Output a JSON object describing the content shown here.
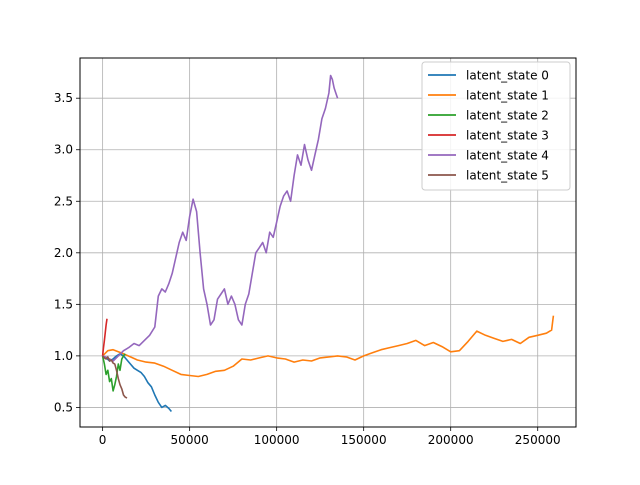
{
  "chart_data": {
    "type": "line",
    "title": "",
    "xlabel": "",
    "ylabel": "",
    "xlim": [
      -13000,
      272000
    ],
    "ylim": [
      0.31,
      3.89
    ],
    "grid": true,
    "legend_position": "top-right",
    "x_ticks": [
      0,
      50000,
      100000,
      150000,
      200000,
      250000
    ],
    "x_tick_labels": [
      "0",
      "50000",
      "100000",
      "150000",
      "200000",
      "250000"
    ],
    "y_ticks": [
      0.5,
      1.0,
      1.5,
      2.0,
      2.5,
      3.0,
      3.5
    ],
    "y_tick_labels": [
      "0.5",
      "1.0",
      "1.5",
      "2.0",
      "2.5",
      "3.0",
      "3.5"
    ],
    "series": [
      {
        "name": "latent_state 0",
        "color": "#1f77b4",
        "x": [
          0,
          2000,
          4000,
          6000,
          8000,
          10000,
          12000,
          14000,
          16000,
          18000,
          20000,
          22000,
          24000,
          26000,
          28000,
          30000,
          32000,
          34000,
          36000,
          38000,
          39500
        ],
        "y": [
          1.0,
          0.98,
          0.95,
          0.97,
          1.0,
          1.02,
          1.0,
          0.96,
          0.92,
          0.88,
          0.86,
          0.84,
          0.8,
          0.74,
          0.7,
          0.62,
          0.55,
          0.5,
          0.52,
          0.49,
          0.46
        ]
      },
      {
        "name": "latent_state 1",
        "color": "#ff7f0e",
        "x": [
          0,
          3000,
          6000,
          9000,
          12000,
          16000,
          20000,
          25000,
          30000,
          35000,
          40000,
          45000,
          50000,
          55000,
          60000,
          65000,
          70000,
          75000,
          80000,
          85000,
          90000,
          95000,
          100000,
          105000,
          110000,
          115000,
          120000,
          125000,
          130000,
          135000,
          140000,
          145000,
          150000,
          155000,
          160000,
          165000,
          170000,
          175000,
          180000,
          185000,
          190000,
          195000,
          200000,
          205000,
          210000,
          215000,
          220000,
          225000,
          230000,
          235000,
          240000,
          245000,
          250000,
          255000,
          258000,
          259000
        ],
        "y": [
          1.0,
          1.05,
          1.06,
          1.04,
          1.02,
          0.99,
          0.96,
          0.94,
          0.93,
          0.9,
          0.86,
          0.82,
          0.81,
          0.8,
          0.82,
          0.85,
          0.86,
          0.9,
          0.97,
          0.96,
          0.98,
          1.0,
          0.98,
          0.97,
          0.94,
          0.96,
          0.95,
          0.98,
          0.99,
          1.0,
          0.99,
          0.96,
          1.0,
          1.03,
          1.06,
          1.08,
          1.1,
          1.12,
          1.15,
          1.1,
          1.13,
          1.09,
          1.04,
          1.05,
          1.14,
          1.24,
          1.2,
          1.17,
          1.14,
          1.16,
          1.12,
          1.18,
          1.2,
          1.22,
          1.25,
          1.39
        ]
      },
      {
        "name": "latent_state 2",
        "color": "#2ca02c",
        "x": [
          0,
          1000,
          2000,
          3000,
          4000,
          5000,
          6000,
          7000,
          8000,
          9000,
          10000,
          11000,
          12000,
          13000
        ],
        "y": [
          1.0,
          0.92,
          0.82,
          0.86,
          0.75,
          0.78,
          0.66,
          0.72,
          0.8,
          0.92,
          0.86,
          0.97,
          1.0,
          1.02
        ]
      },
      {
        "name": "latent_state 3",
        "color": "#d62728",
        "x": [
          0,
          500,
          1000,
          1500,
          2000,
          2500
        ],
        "y": [
          1.0,
          1.08,
          1.15,
          1.22,
          1.3,
          1.36
        ]
      },
      {
        "name": "latent_state 4",
        "color": "#9467bd",
        "x": [
          0,
          3000,
          6000,
          9000,
          12000,
          15000,
          18000,
          21000,
          24000,
          27000,
          30000,
          32000,
          34000,
          36000,
          38000,
          40000,
          42000,
          44000,
          46000,
          48000,
          50000,
          52000,
          54000,
          56000,
          58000,
          60000,
          62000,
          64000,
          66000,
          68000,
          70000,
          72000,
          74000,
          76000,
          78000,
          80000,
          82000,
          84000,
          86000,
          88000,
          90000,
          92000,
          94000,
          96000,
          98000,
          100000,
          102000,
          104000,
          106000,
          108000,
          110000,
          112000,
          114000,
          116000,
          118000,
          120000,
          122000,
          124000,
          126000,
          128000,
          130000,
          131000,
          132000,
          133000,
          134000,
          135000
        ],
        "y": [
          1.0,
          0.98,
          0.95,
          1.0,
          1.05,
          1.08,
          1.12,
          1.1,
          1.15,
          1.2,
          1.28,
          1.58,
          1.65,
          1.62,
          1.7,
          1.8,
          1.95,
          2.1,
          2.2,
          2.12,
          2.35,
          2.52,
          2.4,
          2.0,
          1.65,
          1.5,
          1.3,
          1.35,
          1.55,
          1.6,
          1.65,
          1.5,
          1.58,
          1.5,
          1.35,
          1.3,
          1.5,
          1.6,
          1.8,
          2.0,
          2.05,
          2.1,
          2.0,
          2.2,
          2.15,
          2.3,
          2.45,
          2.55,
          2.6,
          2.5,
          2.75,
          2.95,
          2.85,
          3.05,
          2.9,
          2.8,
          2.95,
          3.1,
          3.3,
          3.4,
          3.55,
          3.72,
          3.68,
          3.6,
          3.55,
          3.5
        ]
      },
      {
        "name": "latent_state 5",
        "color": "#8c564b",
        "x": [
          0,
          1000,
          2000,
          3000,
          4000,
          5000,
          6000,
          7000,
          8000,
          9000,
          10000,
          11000,
          12000,
          13000,
          14000
        ],
        "y": [
          1.0,
          0.98,
          0.97,
          0.99,
          0.95,
          0.96,
          0.93,
          0.92,
          0.86,
          0.78,
          0.72,
          0.68,
          0.62,
          0.6,
          0.59
        ]
      }
    ]
  }
}
